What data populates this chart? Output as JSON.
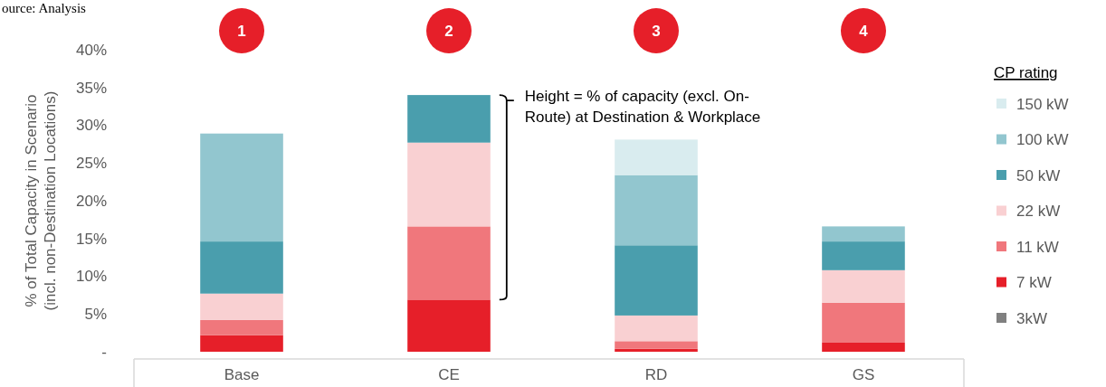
{
  "chart_data": {
    "type": "bar",
    "stacked": true,
    "ylabel": "% of Total Capacity in Scenario\n(incl. non-Destination Locations)",
    "legend_title": "CP rating",
    "legend": "right",
    "categories": [
      "Base",
      "CE",
      "RD",
      "GS"
    ],
    "ylim": [
      0,
      40
    ],
    "yticks": [
      {
        "value": 0,
        "label": "-"
      },
      {
        "value": 5,
        "label": "5%"
      },
      {
        "value": 10,
        "label": "10%"
      },
      {
        "value": 15,
        "label": "15%"
      },
      {
        "value": 20,
        "label": "20%"
      },
      {
        "value": 25,
        "label": "25%"
      },
      {
        "value": 30,
        "label": "30%"
      },
      {
        "value": 35,
        "label": "35%"
      },
      {
        "value": 40,
        "label": "40%"
      }
    ],
    "series": [
      {
        "name": "3kW",
        "color": "#808080",
        "values": [
          0,
          0,
          0,
          0
        ]
      },
      {
        "name": "7 kW",
        "color": "#e61f29",
        "values": [
          2.2,
          6.9,
          0.4,
          1.2
        ]
      },
      {
        "name": "11 kW",
        "color": "#f0777c",
        "values": [
          2.0,
          9.7,
          1.0,
          5.3
        ]
      },
      {
        "name": "22 kW",
        "color": "#f9d0d2",
        "values": [
          3.5,
          11.1,
          3.4,
          4.3
        ]
      },
      {
        "name": "50 kW",
        "color": "#4a9ead",
        "values": [
          6.9,
          6.3,
          9.3,
          3.8
        ]
      },
      {
        "name": "100 kW",
        "color": "#92c6cf",
        "values": [
          14.3,
          null,
          9.3,
          2.0
        ]
      },
      {
        "name": "150 kW",
        "color": "#d9ecef",
        "values": [
          null,
          null,
          4.7,
          null
        ]
      }
    ],
    "annotations": [
      "ource: Analysis",
      "Height = % of capacity (excl. On-\nRoute) at Destination & Workplace",
      "1",
      "2",
      "3",
      "4"
    ]
  }
}
